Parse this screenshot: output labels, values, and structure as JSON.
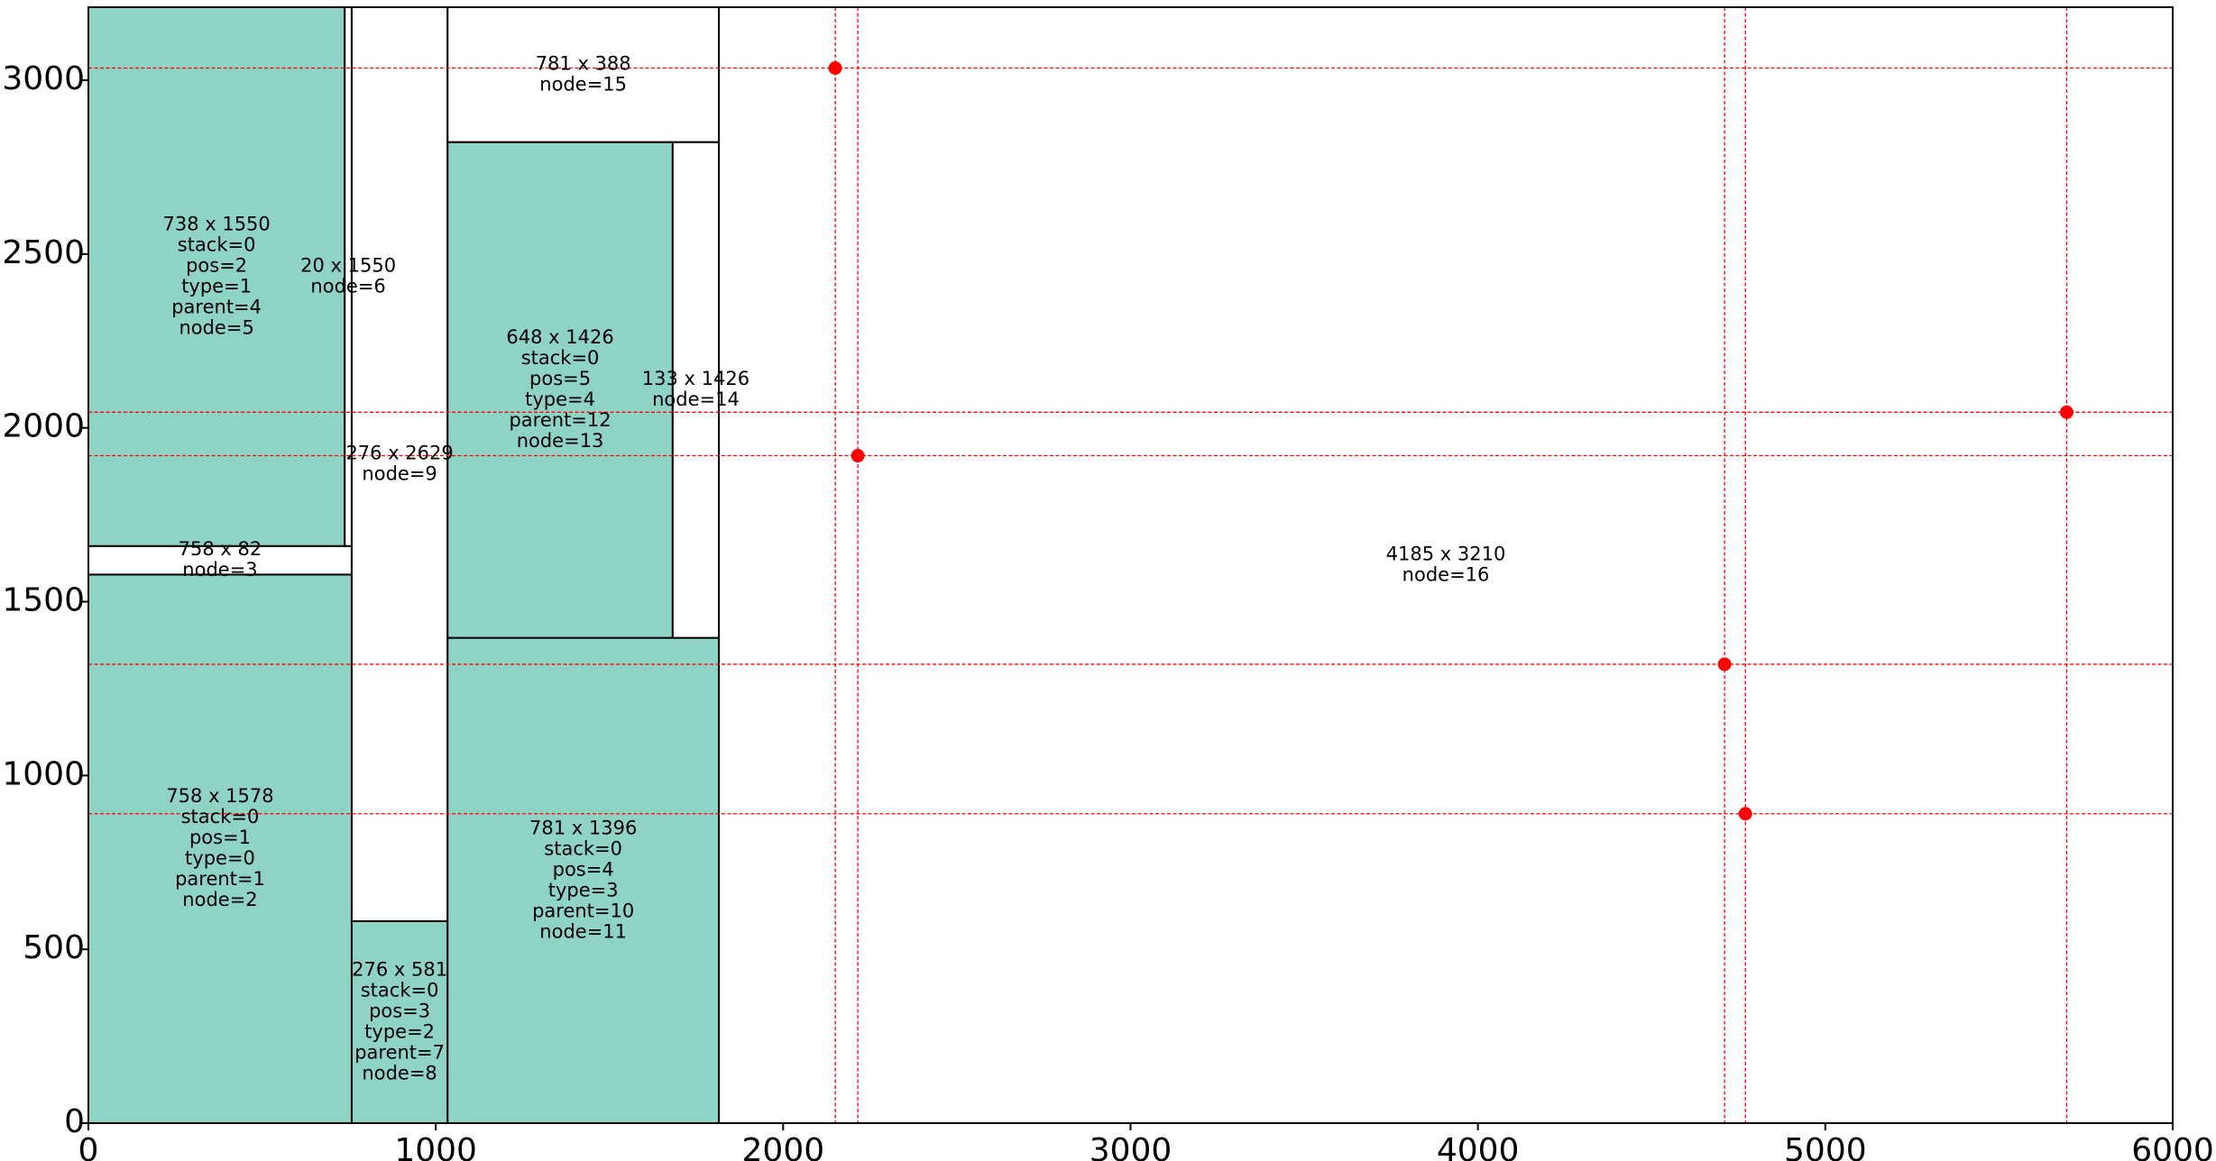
{
  "chart_data": {
    "type": "rectangle-packing",
    "xlim": [
      0,
      6000
    ],
    "ylim": [
      0,
      3210
    ],
    "xticks": [
      "0",
      "1000",
      "2000",
      "3000",
      "4000",
      "5000",
      "6000"
    ],
    "yticks": [
      "0",
      "500",
      "1000",
      "1500",
      "2000",
      "2500",
      "3000"
    ],
    "xtick_values": [
      0,
      1000,
      2000,
      3000,
      4000,
      5000,
      6000
    ],
    "ytick_values": [
      0,
      500,
      1000,
      1500,
      2000,
      2500,
      3000
    ],
    "colors": {
      "filled": "#8fd3c7",
      "empty": "#ffffff",
      "edge": "#000000",
      "guide": "#ff0000"
    },
    "rects": [
      {
        "x": 0,
        "y": 0,
        "w": 758,
        "h": 1578,
        "filled": true,
        "label": "758 x 1578\nstack=0\npos=1\ntype=0\nparent=1\nnode=2"
      },
      {
        "x": 0,
        "y": 1578,
        "w": 758,
        "h": 82,
        "filled": false,
        "label": "758 x 82\nnode=3"
      },
      {
        "x": 0,
        "y": 1660,
        "w": 738,
        "h": 1550,
        "filled": true,
        "label": "738 x 1550\nstack=0\npos=2\ntype=1\nparent=4\nnode=5"
      },
      {
        "x": 738,
        "y": 1660,
        "w": 20,
        "h": 1550,
        "filled": false,
        "label": "20 x 1550\nnode=6"
      },
      {
        "x": 758,
        "y": 0,
        "w": 276,
        "h": 581,
        "filled": true,
        "label": "276 x 581\nstack=0\npos=3\ntype=2\nparent=7\nnode=8"
      },
      {
        "x": 758,
        "y": 581,
        "w": 276,
        "h": 2629,
        "filled": false,
        "label": "276 x 2629\nnode=9"
      },
      {
        "x": 1034,
        "y": 0,
        "w": 781,
        "h": 1396,
        "filled": true,
        "label": "781 x 1396\nstack=0\npos=4\ntype=3\nparent=10\nnode=11"
      },
      {
        "x": 1034,
        "y": 1396,
        "w": 648,
        "h": 1426,
        "filled": true,
        "label": "648 x 1426\nstack=0\npos=5\ntype=4\nparent=12\nnode=13"
      },
      {
        "x": 1682,
        "y": 1396,
        "w": 133,
        "h": 1426,
        "filled": false,
        "label": "133 x 1426\nnode=14"
      },
      {
        "x": 1034,
        "y": 2822,
        "w": 781,
        "h": 388,
        "filled": false,
        "label": "781 x 388\nnode=15"
      },
      {
        "x": 1815,
        "y": 0,
        "w": 4185,
        "h": 3210,
        "filled": false,
        "label": "4185 x 3210\nnode=16"
      }
    ],
    "points": [
      {
        "x": 2150,
        "y": 3035
      },
      {
        "x": 2215,
        "y": 1920
      },
      {
        "x": 4710,
        "y": 1320
      },
      {
        "x": 4770,
        "y": 890
      },
      {
        "x": 5695,
        "y": 2045
      }
    ]
  }
}
